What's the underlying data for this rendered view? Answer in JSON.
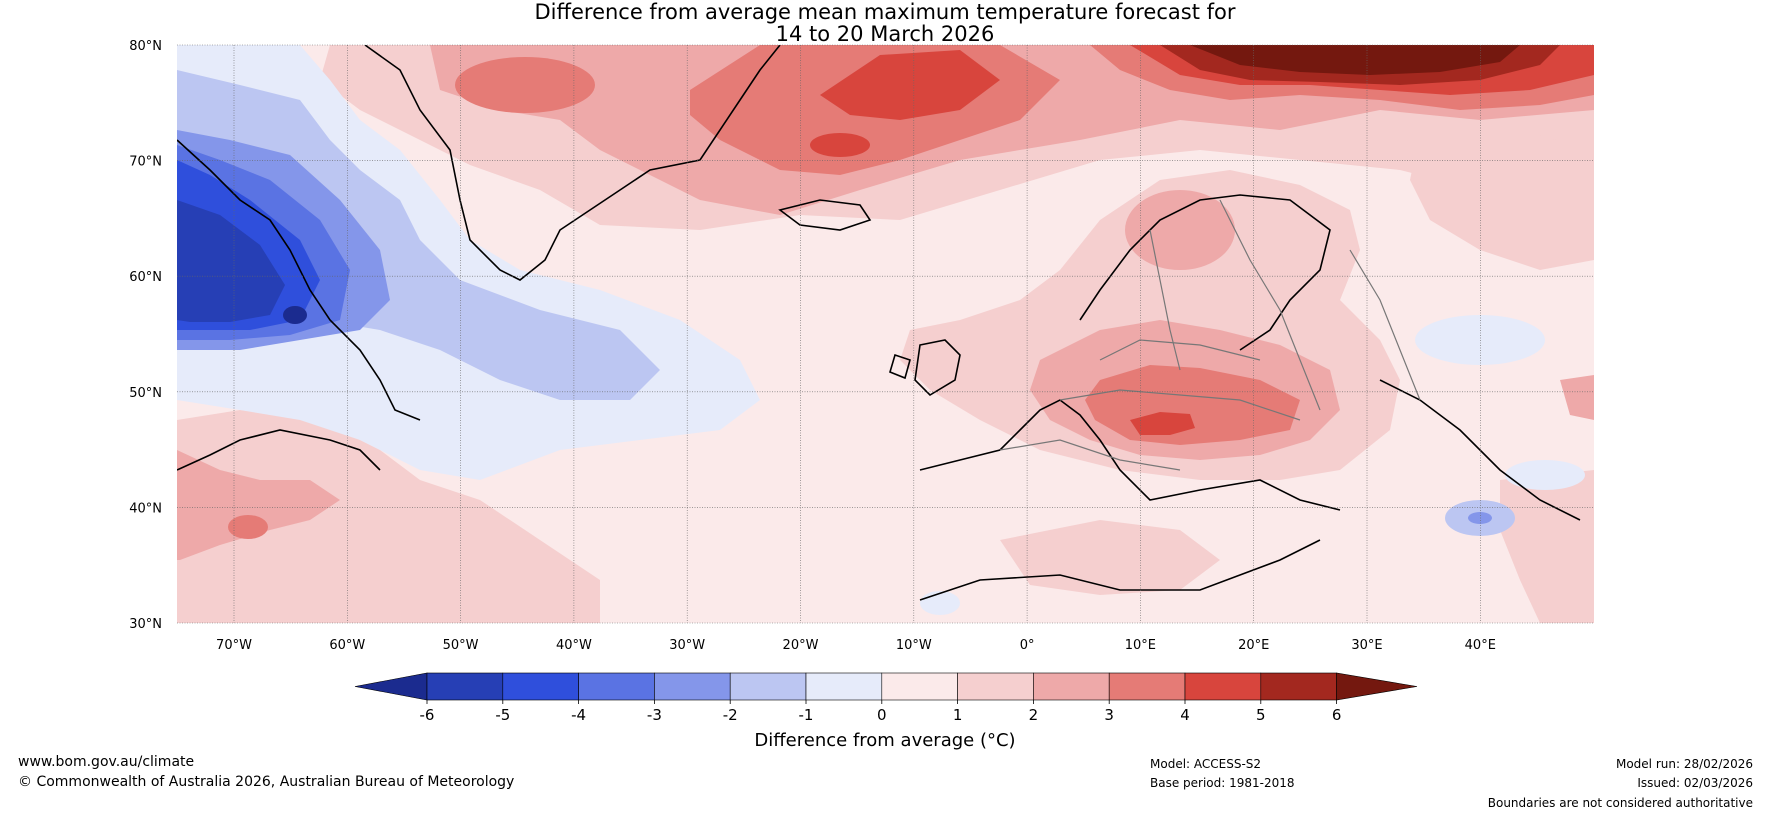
{
  "title": {
    "line1": "Difference from average mean maximum temperature forecast for",
    "line2": "14 to 20 March 2026"
  },
  "axes": {
    "lat_labels": [
      "80°N",
      "70°N",
      "60°N",
      "50°N",
      "40°N",
      "30°N"
    ],
    "lon_labels": [
      "70°W",
      "60°W",
      "50°W",
      "40°W",
      "30°W",
      "20°W",
      "10°W",
      "0°",
      "10°E",
      "20°E",
      "30°E",
      "40°E"
    ]
  },
  "colorbar": {
    "title": "Difference from average (°C)",
    "ticks": [
      "-6",
      "-5",
      "-4",
      "-3",
      "-2",
      "-1",
      "0",
      "1",
      "2",
      "3",
      "4",
      "5",
      "6"
    ],
    "colors": [
      "#1b2b8f",
      "#263fb5",
      "#2f4fdc",
      "#5a73e3",
      "#8496ea",
      "#bcc6f2",
      "#e6ebfa",
      "#fbeaea",
      "#f5cfcf",
      "#eea9a9",
      "#e57b76",
      "#d8453d",
      "#a3281f",
      "#74180f"
    ]
  },
  "footer": {
    "website": "www.bom.gov.au/climate",
    "copyright": "© Commonwealth of Australia 2026, Australian Bureau of Meteorology",
    "model": "Model: ACCESS-S2",
    "base_period": "Base period: 1981-2018",
    "model_run": "Model run: 28/02/2026",
    "issued": "Issued: 02/03/2026",
    "disclaimer": "Boundaries are not considered authoritative"
  }
}
